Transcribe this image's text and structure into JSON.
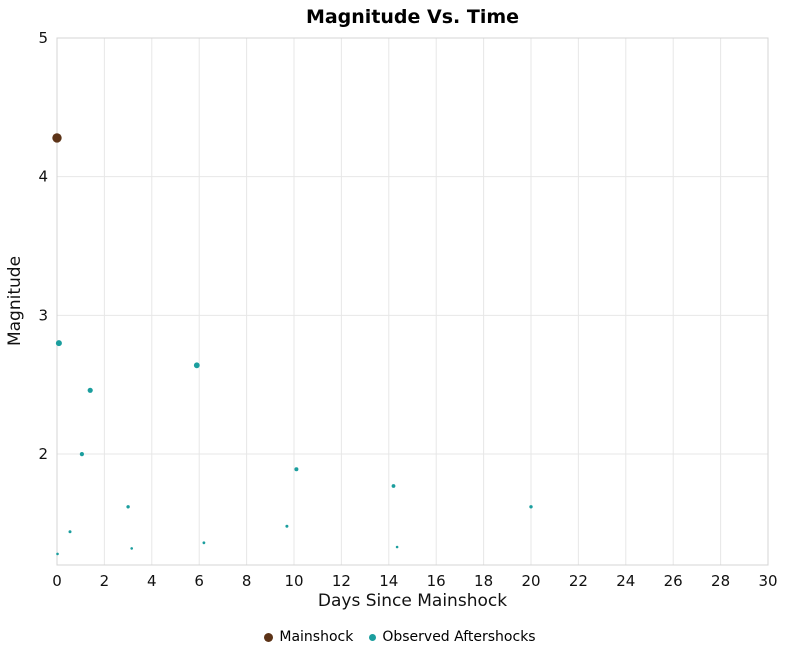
{
  "chart_data": {
    "type": "scatter",
    "title": "Magnitude Vs. Time",
    "xlabel": "Days Since Mainshock",
    "ylabel": "Magnitude",
    "xlim": [
      0,
      30
    ],
    "ylim": [
      1.2,
      5
    ],
    "x_ticks": [
      0,
      2,
      4,
      6,
      8,
      10,
      12,
      14,
      16,
      18,
      20,
      22,
      24,
      26,
      28,
      30
    ],
    "y_ticks": [
      2,
      3,
      4,
      5
    ],
    "grid": true,
    "legend_position": "bottom",
    "colors": {
      "grid": "#e7e7e7",
      "frame": "#d4d4d4",
      "tick_text": "#111111"
    },
    "series": [
      {
        "name": "Mainshock",
        "color": "#5c3317",
        "points": [
          {
            "x": 0,
            "y": 4.28
          }
        ]
      },
      {
        "name": "Observed Aftershocks",
        "color": "#1b9e9e",
        "points": [
          {
            "x": 0.08,
            "y": 2.8
          },
          {
            "x": 1.4,
            "y": 2.46
          },
          {
            "x": 1.05,
            "y": 2.0
          },
          {
            "x": 0.55,
            "y": 1.44
          },
          {
            "x": 0.02,
            "y": 1.28
          },
          {
            "x": 3.0,
            "y": 1.62
          },
          {
            "x": 3.15,
            "y": 1.32
          },
          {
            "x": 5.9,
            "y": 2.64
          },
          {
            "x": 6.2,
            "y": 1.36
          },
          {
            "x": 9.7,
            "y": 1.48
          },
          {
            "x": 10.1,
            "y": 1.89
          },
          {
            "x": 14.2,
            "y": 1.77
          },
          {
            "x": 14.35,
            "y": 1.33
          },
          {
            "x": 20.0,
            "y": 1.62
          }
        ]
      }
    ]
  }
}
